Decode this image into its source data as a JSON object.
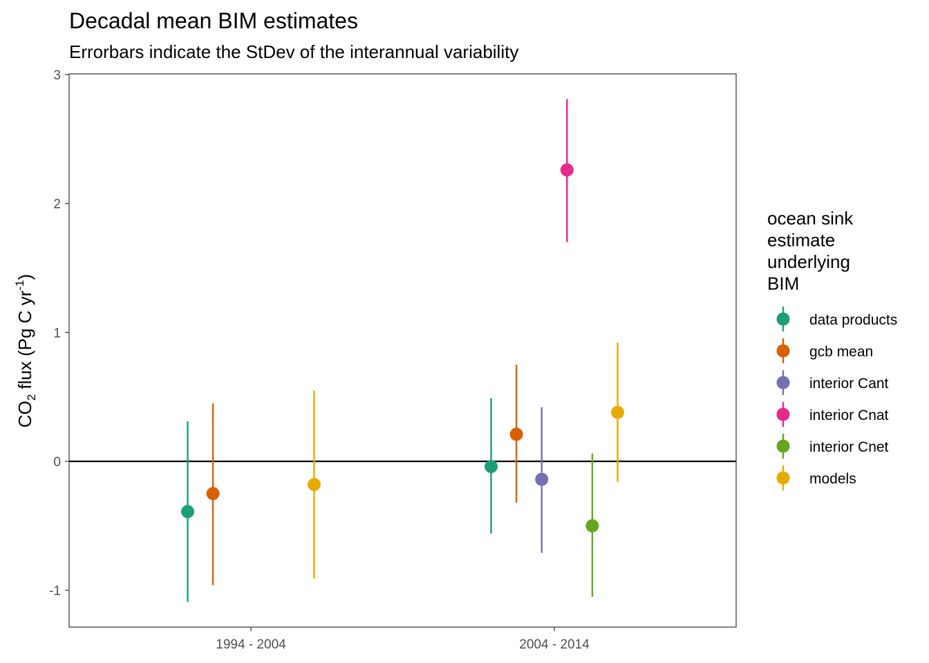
{
  "chart_data": {
    "type": "scatter",
    "title": "Decadal mean BIM estimates",
    "subtitle": "Errorbars indicate the StDev of the interannual variability",
    "xlabel": "",
    "ylabel": {
      "main": "CO",
      "sub": "2",
      "rest": " flux (Pg C yr",
      "sup": "-1",
      "close": ")"
    },
    "ylim": [
      -1.3,
      3.0
    ],
    "yticks": [
      "-1",
      "0",
      "1",
      "2",
      "3"
    ],
    "categories": [
      "1994 - 2004",
      "2004 - 2014"
    ],
    "legend_title": [
      "ocean sink",
      "estimate",
      "underlying",
      "BIM"
    ],
    "legend_position": "right",
    "grid": false,
    "hline_y": 0,
    "series": [
      {
        "name": "data products",
        "color": "#1B9E77",
        "points": [
          {
            "x": "1994 - 2004",
            "y": -0.39,
            "ymin": -1.09,
            "ymax": 0.31
          },
          {
            "x": "2004 - 2014",
            "y": -0.04,
            "ymin": -0.56,
            "ymax": 0.49
          }
        ]
      },
      {
        "name": "gcb mean",
        "color": "#D95F02",
        "points": [
          {
            "x": "1994 - 2004",
            "y": -0.25,
            "ymin": -0.96,
            "ymax": 0.45
          },
          {
            "x": "2004 - 2014",
            "y": 0.21,
            "ymin": -0.32,
            "ymax": 0.75
          }
        ]
      },
      {
        "name": "interior Cant",
        "color": "#7570B3",
        "points": [
          {
            "x": "2004 - 2014",
            "y": -0.14,
            "ymin": -0.71,
            "ymax": 0.42
          }
        ]
      },
      {
        "name": "interior Cnat",
        "color": "#E7298A",
        "points": [
          {
            "x": "2004 - 2014",
            "y": 2.26,
            "ymin": 1.7,
            "ymax": 2.81
          }
        ]
      },
      {
        "name": "interior Cnet",
        "color": "#66A61E",
        "points": [
          {
            "x": "2004 - 2014",
            "y": -0.5,
            "ymin": -1.05,
            "ymax": 0.06
          }
        ]
      },
      {
        "name": "models",
        "color": "#E6AB02",
        "points": [
          {
            "x": "1994 - 2004",
            "y": -0.18,
            "ymin": -0.91,
            "ymax": 0.55
          },
          {
            "x": "2004 - 2014",
            "y": 0.38,
            "ymin": -0.16,
            "ymax": 0.92
          }
        ]
      }
    ]
  }
}
